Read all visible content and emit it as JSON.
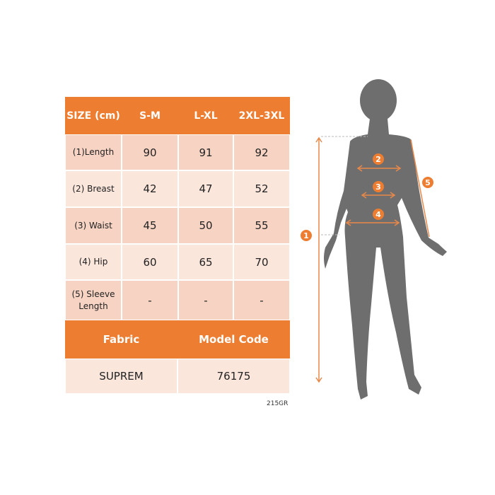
{
  "table": {
    "header": [
      "SIZE (cm)",
      "S-M",
      "L-XL",
      "2XL-3XL"
    ],
    "rows": [
      {
        "label": "(1)Length",
        "values": [
          "90",
          "91",
          "92"
        ]
      },
      {
        "label": "(2) Breast",
        "values": [
          "42",
          "47",
          "52"
        ]
      },
      {
        "label": "(3) Waist",
        "values": [
          "45",
          "50",
          "55"
        ]
      },
      {
        "label": "(4) Hip",
        "values": [
          "60",
          "65",
          "70"
        ]
      },
      {
        "label": "(5) Sleeve Length",
        "values": [
          "-",
          "-",
          "-"
        ]
      }
    ],
    "footer_header": [
      "Fabric",
      "Model Code"
    ],
    "footer_values": [
      "SUPREM",
      "76175"
    ]
  },
  "product_code": "215GR",
  "diagram_markers": [
    "1",
    "2",
    "3",
    "4",
    "5"
  ],
  "colors": {
    "accent": "#ed7d31",
    "row_dark": "#f7d3c3",
    "row_light": "#fbe6dc",
    "silhouette": "#6e6e6e"
  }
}
